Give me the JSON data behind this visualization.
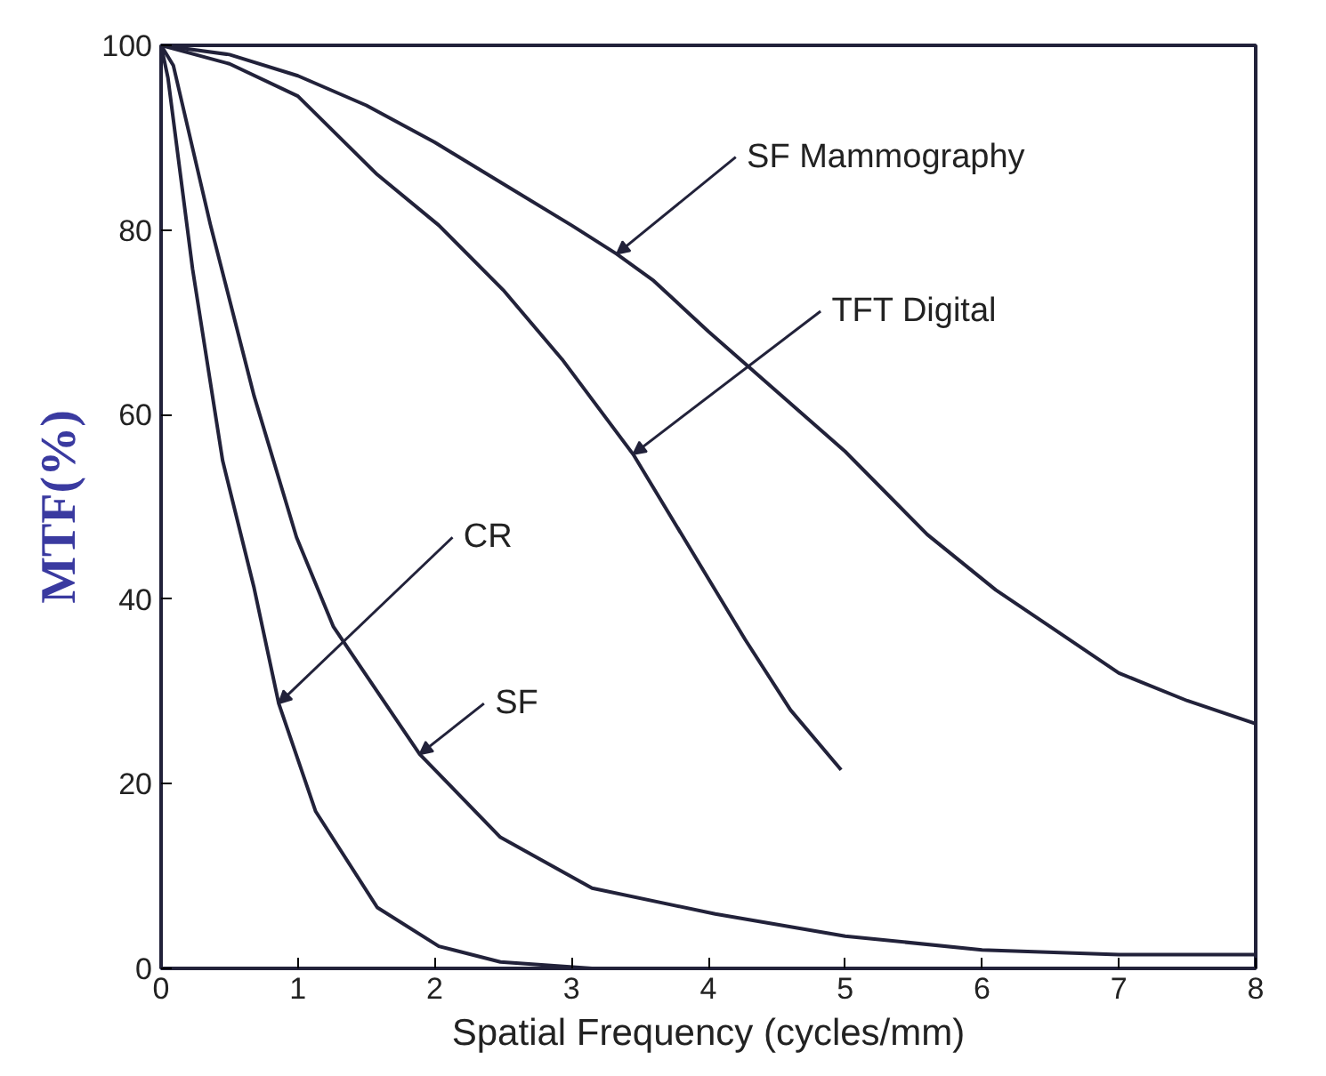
{
  "chart_data": {
    "type": "line",
    "xlabel": "Spatial Frequency (cycles/mm)",
    "ylabel": "MTF(%)",
    "xlim": [
      0,
      8
    ],
    "ylim": [
      0,
      100
    ],
    "xticks": [
      0,
      1,
      2,
      3,
      4,
      5,
      6,
      7,
      8
    ],
    "yticks": [
      0,
      20,
      40,
      60,
      80,
      100
    ],
    "grid": false,
    "marker": "none",
    "line_style": "solid",
    "series": [
      {
        "color": "#22223a",
        "x": [
          0,
          0.5,
          1,
          1.5,
          2,
          2.5,
          3,
          3.33,
          3.6,
          4,
          4.5,
          5,
          5.6,
          6.1,
          6.5,
          7,
          7.5,
          8
        ],
        "values": [
          100,
          99,
          96.7,
          93.5,
          89.5,
          85,
          80.5,
          77.4,
          74.5,
          69,
          62.5,
          56,
          47,
          41,
          37,
          32,
          29,
          26.5
        ]
      },
      {
        "color": "#22223a",
        "x": [
          0,
          0.5,
          1,
          1.58,
          2.03,
          2.5,
          2.93,
          3.45,
          4.05,
          4.27,
          4.6,
          4.97
        ],
        "values": [
          100,
          98,
          94.5,
          86,
          80.5,
          73.5,
          66,
          55.7,
          41,
          35.6,
          28,
          21.5
        ]
      },
      {
        "color": "#22223a",
        "x": [
          0,
          0.09,
          0.36,
          0.68,
          0.99,
          1.26,
          1.89,
          2.48,
          3.15,
          4.05,
          5,
          6,
          7,
          8
        ],
        "values": [
          100,
          97.8,
          80.6,
          62,
          46.7,
          37,
          23.2,
          14.2,
          8.7,
          5.9,
          3.5,
          2,
          1.5,
          1.5
        ]
      },
      {
        "color": "#22223a",
        "x": [
          0,
          0.05,
          0.23,
          0.45,
          0.68,
          0.86,
          1.13,
          1.58,
          2.03,
          2.48,
          3.15,
          4
        ],
        "values": [
          100,
          96.5,
          75.8,
          55,
          41.2,
          28.7,
          17,
          6.6,
          2.4,
          0.7,
          0,
          0
        ]
      }
    ],
    "annotations": [
      {
        "text": "SF Mammography",
        "x": 3.33,
        "y": 77.4
      },
      {
        "text": "TFT Digital",
        "x": 3.45,
        "y": 55.7
      },
      {
        "text": "CR",
        "x": 0.86,
        "y": 28.7
      },
      {
        "text": "SF",
        "x": 1.89,
        "y": 23.2
      }
    ]
  }
}
